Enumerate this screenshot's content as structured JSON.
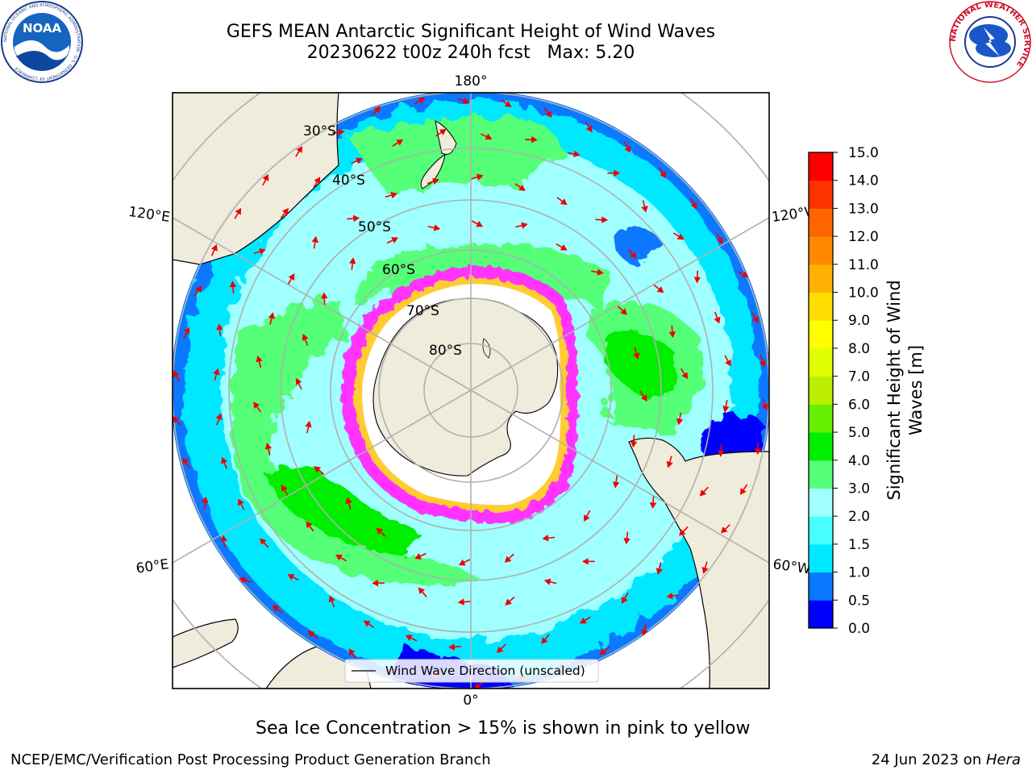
{
  "title": {
    "line1": "GEFS MEAN Antarctic Significant Height of Wind Waves",
    "line2": "20230622 t00z 240h fcst   Max: 5.20"
  },
  "map": {
    "projection": "south-polar-stereographic",
    "longitude_labels": {
      "top": "180°",
      "bottom": "0°",
      "left_upper": "120°E",
      "left_lower": "60°E",
      "right_upper": "120°W",
      "right_lower": "60°W"
    },
    "latitude_labels": [
      "30°S",
      "40°S",
      "50°S",
      "60°S",
      "70°S",
      "80°S"
    ],
    "legend_label": "Wind Wave Direction (unscaled)",
    "land_color": "#efecdc",
    "ice_fringe_color": "#ff33ff"
  },
  "colorbar": {
    "label_line1": "Significant Height of Wind",
    "label_line2": "Waves [m]",
    "tick_labels": [
      "0.0",
      "0.5",
      "1.0",
      "1.5",
      "2.0",
      "3.0",
      "4.0",
      "5.0",
      "6.0",
      "7.0",
      "8.0",
      "9.0",
      "10.0",
      "11.0",
      "12.0",
      "13.0",
      "14.0",
      "15.0"
    ],
    "colors": [
      "#0000ff",
      "#0a78ff",
      "#00e8ff",
      "#48ffff",
      "#a0ffff",
      "#55ff77",
      "#00ee00",
      "#66ee00",
      "#bbee00",
      "#ddff00",
      "#ffff00",
      "#ffdd00",
      "#ffb000",
      "#ff8800",
      "#ff6600",
      "#ff3300",
      "#ff0000"
    ]
  },
  "note": "Sea Ice Concentration > 15% is shown in pink to yellow",
  "footer": {
    "left": "NCEP/EMC/Verification Post Processing Product Generation Branch",
    "right_prefix": "24 Jun 2023 on ",
    "right_host": "Hera"
  },
  "logos": {
    "noaa_text": "NOAA",
    "noaa_ring": "NATIONAL OCEANIC AND ATMOSPHERIC ADMINISTRATION · U.S. DEPARTMENT OF COMMERCE",
    "nws_ring": "NATIONAL WEATHER SERVICE"
  }
}
